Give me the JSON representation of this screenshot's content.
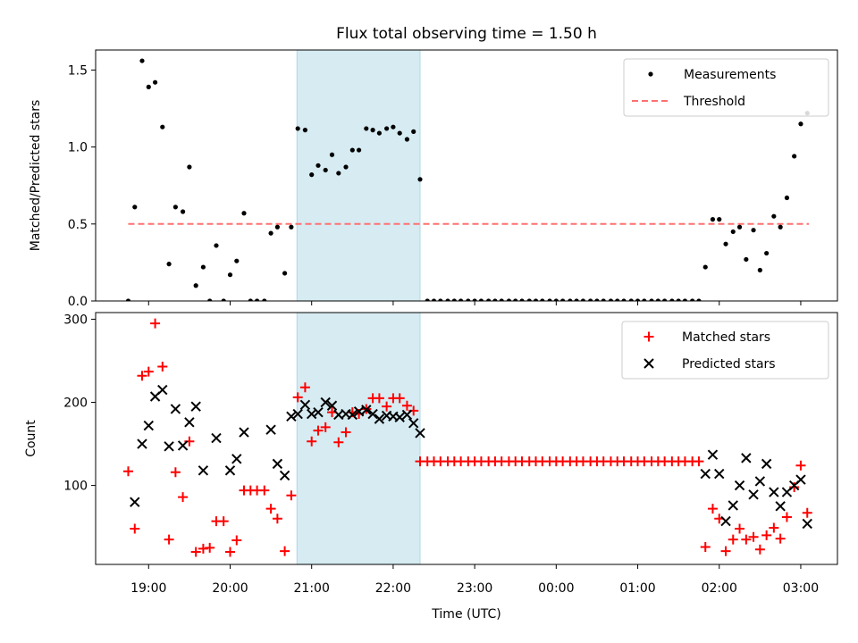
{
  "figure": {
    "title": "Flux total observing time = 1.50 h",
    "xlabel": "Time (UTC)"
  },
  "chart_data": [
    {
      "type": "scatter",
      "ylabel": "Matched/Predicted stars",
      "x_ticks": [
        "19:00",
        "20:00",
        "21:00",
        "22:00",
        "23:00",
        "00:00",
        "01:00",
        "02:00",
        "03:00"
      ],
      "y_ticks": [
        "0.0",
        "0.5",
        "1.0",
        "1.5"
      ],
      "xlim_hours": [
        18.35,
        27.45
      ],
      "ylim": [
        0,
        1.63
      ],
      "highlight_span_hours": [
        20.82,
        22.33
      ],
      "highlight_color": "#add8e6",
      "threshold": 0.5,
      "threshold_x_hours": [
        18.75,
        27.1
      ],
      "legend": {
        "position": "upper right",
        "entries": [
          "Measurements",
          "Threshold"
        ]
      },
      "series": [
        {
          "name": "Measurements",
          "color": "#000000",
          "x_hours": [
            18.75,
            18.83,
            18.92,
            19.0,
            19.08,
            19.17,
            19.25,
            19.33,
            19.42,
            19.5,
            19.58,
            19.67,
            19.75,
            19.83,
            19.92,
            20.0,
            20.08,
            20.17,
            20.25,
            20.33,
            20.42,
            20.5,
            20.58,
            20.67,
            20.75,
            20.83,
            20.92,
            21.0,
            21.08,
            21.17,
            21.25,
            21.33,
            21.42,
            21.5,
            21.58,
            21.67,
            21.75,
            21.83,
            21.92,
            22.0,
            22.08,
            22.17,
            22.25,
            22.33,
            22.42,
            22.5,
            22.58,
            22.67,
            22.75,
            22.83,
            22.92,
            23.0,
            23.08,
            23.17,
            23.25,
            23.33,
            23.42,
            23.5,
            23.58,
            23.67,
            23.75,
            23.83,
            23.92,
            24.0,
            24.08,
            24.17,
            24.25,
            24.33,
            24.42,
            24.5,
            24.58,
            24.67,
            24.75,
            24.83,
            24.92,
            25.0,
            25.08,
            25.17,
            25.25,
            25.33,
            25.42,
            25.5,
            25.58,
            25.67,
            25.75,
            25.83,
            25.92,
            26.0,
            26.08,
            26.17,
            26.25,
            26.33,
            26.42,
            26.5,
            26.58,
            26.67,
            26.75,
            26.83,
            26.92,
            27.0,
            27.08
          ],
          "values": [
            0.0,
            0.61,
            1.56,
            1.39,
            1.42,
            1.13,
            0.24,
            0.61,
            0.58,
            0.87,
            0.1,
            0.22,
            0.0,
            0.36,
            0.0,
            0.17,
            0.26,
            0.57,
            0.0,
            0.0,
            0.0,
            0.44,
            0.48,
            0.18,
            0.48,
            1.12,
            1.11,
            0.82,
            0.88,
            0.85,
            0.95,
            0.83,
            0.87,
            0.98,
            0.98,
            1.12,
            1.11,
            1.09,
            1.12,
            1.13,
            1.09,
            1.05,
            1.1,
            0.79,
            0.0,
            0.0,
            0.0,
            0.0,
            0.0,
            0.0,
            0.0,
            0.0,
            0.0,
            0.0,
            0.0,
            0.0,
            0.0,
            0.0,
            0.0,
            0.0,
            0.0,
            0.0,
            0.0,
            0.0,
            0.0,
            0.0,
            0.0,
            0.0,
            0.0,
            0.0,
            0.0,
            0.0,
            0.0,
            0.0,
            0.0,
            0.0,
            0.0,
            0.0,
            0.0,
            0.0,
            0.0,
            0.0,
            0.0,
            0.0,
            0.0,
            0.22,
            0.53,
            0.53,
            0.37,
            0.45,
            0.48,
            0.27,
            0.46,
            0.2,
            0.31,
            0.55,
            0.48,
            0.67,
            0.94,
            1.15,
            1.22
          ]
        },
        {
          "name": "Threshold",
          "color": "#ff7070",
          "style": "dashed"
        }
      ]
    },
    {
      "type": "scatter",
      "ylabel": "Count",
      "x_ticks": [
        "19:00",
        "20:00",
        "21:00",
        "22:00",
        "23:00",
        "00:00",
        "01:00",
        "02:00",
        "03:00"
      ],
      "y_ticks": [
        "100",
        "200",
        "300"
      ],
      "xlim_hours": [
        18.35,
        27.45
      ],
      "ylim": [
        5,
        308
      ],
      "highlight_span_hours": [
        20.82,
        22.33
      ],
      "legend": {
        "position": "upper right",
        "entries": [
          "Matched stars",
          "Predicted stars"
        ]
      },
      "series": [
        {
          "name": "Matched stars",
          "marker": "plus",
          "color": "#ff0000",
          "x_hours": [
            18.75,
            18.83,
            18.92,
            19.0,
            19.08,
            19.17,
            19.25,
            19.33,
            19.42,
            19.5,
            19.58,
            19.67,
            19.75,
            19.83,
            19.92,
            20.0,
            20.08,
            20.17,
            20.25,
            20.33,
            20.42,
            20.5,
            20.58,
            20.67,
            20.75,
            20.83,
            20.92,
            21.0,
            21.08,
            21.17,
            21.25,
            21.33,
            21.42,
            21.5,
            21.58,
            21.67,
            21.75,
            21.83,
            21.92,
            22.0,
            22.08,
            22.17,
            22.25,
            22.33,
            22.42,
            22.5,
            22.58,
            22.67,
            22.75,
            22.83,
            22.92,
            23.0,
            23.08,
            23.17,
            23.25,
            23.33,
            23.42,
            23.5,
            23.58,
            23.67,
            23.75,
            23.83,
            23.92,
            24.0,
            24.08,
            24.17,
            24.25,
            24.33,
            24.42,
            24.5,
            24.58,
            24.67,
            24.75,
            24.83,
            24.92,
            25.0,
            25.08,
            25.17,
            25.25,
            25.33,
            25.42,
            25.5,
            25.58,
            25.67,
            25.75,
            25.83,
            25.92,
            26.0,
            26.08,
            26.17,
            26.25,
            26.33,
            26.42,
            26.5,
            26.58,
            26.67,
            26.75,
            26.83,
            26.92,
            27.0,
            27.08
          ],
          "values": [
            117,
            48,
            232,
            237,
            295,
            243,
            35,
            116,
            86,
            153,
            20,
            24,
            25,
            57,
            57,
            20,
            34,
            94,
            94,
            94,
            94,
            72,
            60,
            21,
            88,
            206,
            218,
            153,
            166,
            170,
            188,
            152,
            164,
            188,
            186,
            192,
            205,
            205,
            195,
            205,
            205,
            196,
            190,
            129,
            129,
            129,
            129,
            129,
            129,
            129,
            129,
            129,
            129,
            129,
            129,
            129,
            129,
            129,
            129,
            129,
            129,
            129,
            129,
            129,
            129,
            129,
            129,
            129,
            129,
            129,
            129,
            129,
            129,
            129,
            129,
            129,
            129,
            129,
            129,
            129,
            129,
            129,
            129,
            129,
            129,
            26,
            72,
            60,
            21,
            35,
            48,
            35,
            38,
            23,
            40,
            49,
            36,
            62,
            98,
            124,
            67
          ]
        },
        {
          "name": "Predicted stars",
          "marker": "x",
          "color": "#000000",
          "x_hours": [
            18.83,
            18.92,
            19.0,
            19.08,
            19.17,
            19.25,
            19.33,
            19.42,
            19.5,
            19.58,
            19.67,
            19.83,
            20.0,
            20.08,
            20.17,
            20.5,
            20.58,
            20.67,
            20.75,
            20.83,
            20.92,
            21.0,
            21.08,
            21.17,
            21.25,
            21.33,
            21.42,
            21.5,
            21.58,
            21.67,
            21.75,
            21.83,
            21.92,
            22.0,
            22.08,
            22.17,
            22.25,
            22.33,
            25.83,
            25.92,
            26.0,
            26.08,
            26.17,
            26.25,
            26.33,
            26.42,
            26.5,
            26.58,
            26.67,
            26.75,
            26.83,
            26.92,
            27.0,
            27.08
          ],
          "values": [
            80,
            150,
            172,
            207,
            215,
            147,
            192,
            148,
            176,
            195,
            118,
            157,
            118,
            132,
            164,
            167,
            126,
            112,
            183,
            186,
            197,
            186,
            188,
            200,
            196,
            185,
            186,
            185,
            189,
            191,
            186,
            180,
            184,
            183,
            182,
            185,
            175,
            163,
            114,
            137,
            114,
            57,
            76,
            100,
            133,
            89,
            105,
            126,
            92,
            75,
            92,
            100,
            107,
            54
          ]
        }
      ]
    }
  ]
}
